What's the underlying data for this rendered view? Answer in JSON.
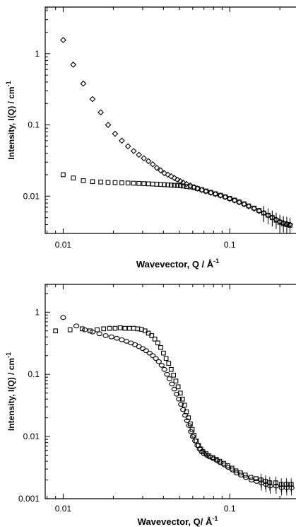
{
  "chart_data": [
    {
      "type": "scatter",
      "xscale": "log",
      "yscale": "log",
      "xlim": [
        0.0078,
        0.25
      ],
      "ylim": [
        0.003,
        4.5
      ],
      "xticks": [
        {
          "v": 0.01,
          "label": "0.01"
        },
        {
          "v": 0.1,
          "label": "0.1"
        }
      ],
      "yticks": [
        {
          "v": 0.01,
          "label": "0.01"
        },
        {
          "v": 0.1,
          "label": "0.1"
        },
        {
          "v": 1,
          "label": "1"
        }
      ],
      "xlabel": "Wavevector, Q  / Å",
      "xlabel_sup": "-1",
      "ylabel": "Intensity, I(Q) / cm",
      "ylabel_sup": "-1",
      "series": [
        {
          "marker": "diamond",
          "x": [
            0.01,
            0.0115,
            0.0132,
            0.015,
            0.0168,
            0.0186,
            0.0205,
            0.0225,
            0.0245,
            0.0265,
            0.0285,
            0.0305,
            0.0325,
            0.0345,
            0.0365,
            0.0385,
            0.0405,
            0.0425,
            0.0445,
            0.0465,
            0.0485,
            0.0505,
            0.0525,
            0.055,
            0.058,
            0.061,
            0.064,
            0.068,
            0.072,
            0.077,
            0.082,
            0.088,
            0.094,
            0.1,
            0.107,
            0.114,
            0.122,
            0.13,
            0.14,
            0.15,
            0.16,
            0.17,
            0.18,
            0.19,
            0.2,
            0.21,
            0.22,
            0.23
          ],
          "y": [
            1.55,
            0.7,
            0.38,
            0.23,
            0.15,
            0.1,
            0.075,
            0.06,
            0.05,
            0.043,
            0.038,
            0.034,
            0.031,
            0.028,
            0.025,
            0.023,
            0.021,
            0.02,
            0.019,
            0.018,
            0.017,
            0.0162,
            0.0155,
            0.0148,
            0.0141,
            0.0134,
            0.0128,
            0.0122,
            0.0117,
            0.0112,
            0.0107,
            0.0102,
            0.0097,
            0.0092,
            0.0087,
            0.0082,
            0.0077,
            0.0072,
            0.0067,
            0.0062,
            0.0058,
            0.0054,
            0.005,
            0.0047,
            0.0044,
            0.0042,
            0.0041,
            0.004
          ]
        },
        {
          "marker": "square",
          "x": [
            0.01,
            0.0115,
            0.0132,
            0.015,
            0.0168,
            0.0186,
            0.0205,
            0.0225,
            0.0245,
            0.0265,
            0.0285,
            0.0305,
            0.0325,
            0.0345,
            0.0365,
            0.0385,
            0.0405,
            0.0425,
            0.0445,
            0.0465,
            0.0485,
            0.0505,
            0.0525,
            0.055,
            0.058,
            0.061,
            0.064,
            0.068,
            0.072,
            0.077,
            0.082,
            0.088,
            0.094,
            0.1,
            0.107,
            0.114,
            0.122,
            0.13,
            0.14,
            0.15,
            0.16,
            0.17,
            0.18,
            0.19,
            0.2,
            0.21,
            0.22,
            0.23
          ],
          "y": [
            0.02,
            0.018,
            0.0165,
            0.016,
            0.0158,
            0.0156,
            0.0155,
            0.0154,
            0.0153,
            0.0152,
            0.0151,
            0.015,
            0.0149,
            0.0148,
            0.0147,
            0.0146,
            0.0145,
            0.0144,
            0.0143,
            0.0142,
            0.0141,
            0.014,
            0.0139,
            0.0137,
            0.0135,
            0.0132,
            0.0128,
            0.0123,
            0.0118,
            0.0113,
            0.0108,
            0.0103,
            0.0098,
            0.0093,
            0.0088,
            0.0083,
            0.0078,
            0.0073,
            0.0068,
            0.0063,
            0.0058,
            0.0054,
            0.005,
            0.0046,
            0.0043,
            0.0041,
            0.004,
            0.0039
          ]
        }
      ]
    },
    {
      "type": "scatter",
      "xscale": "log",
      "yscale": "log",
      "xlim": [
        0.0078,
        0.25
      ],
      "ylim": [
        0.001,
        2.8
      ],
      "xticks": [
        {
          "v": 0.01,
          "label": "0.01"
        },
        {
          "v": 0.1,
          "label": "0.1"
        }
      ],
      "yticks": [
        {
          "v": 0.001,
          "label": "0.001"
        },
        {
          "v": 0.01,
          "label": "0.01"
        },
        {
          "v": 0.1,
          "label": "0.1"
        },
        {
          "v": 1,
          "label": "1"
        }
      ],
      "xlabel": "Wavevector, Q/ Å",
      "xlabel_sup": "-1",
      "ylabel": "Intensity, I(Q) / cm",
      "ylabel_sup": "-1",
      "series": [
        {
          "marker": "circle",
          "x": [
            0.01,
            0.012,
            0.0135,
            0.015,
            0.0165,
            0.018,
            0.0195,
            0.021,
            0.0225,
            0.024,
            0.0255,
            0.027,
            0.0285,
            0.03,
            0.0315,
            0.033,
            0.0345,
            0.036,
            0.0375,
            0.039,
            0.0405,
            0.042,
            0.0435,
            0.045,
            0.0465,
            0.048,
            0.0495,
            0.051,
            0.0525,
            0.054,
            0.0555,
            0.057,
            0.0585,
            0.06,
            0.062,
            0.064,
            0.066,
            0.068,
            0.07,
            0.073,
            0.076,
            0.08,
            0.084,
            0.088,
            0.093,
            0.098,
            0.104,
            0.11,
            0.117,
            0.125,
            0.135,
            0.145,
            0.155,
            0.165,
            0.175,
            0.19,
            0.205,
            0.22,
            0.235
          ],
          "y": [
            0.82,
            0.6,
            0.52,
            0.48,
            0.45,
            0.42,
            0.4,
            0.38,
            0.36,
            0.34,
            0.32,
            0.3,
            0.28,
            0.26,
            0.24,
            0.22,
            0.2,
            0.18,
            0.16,
            0.14,
            0.12,
            0.1,
            0.085,
            0.07,
            0.058,
            0.048,
            0.04,
            0.033,
            0.027,
            0.022,
            0.018,
            0.015,
            0.012,
            0.01,
            0.0085,
            0.0072,
            0.0063,
            0.0057,
            0.0053,
            0.005,
            0.0047,
            0.0044,
            0.0041,
            0.0038,
            0.0035,
            0.0032,
            0.0029,
            0.0026,
            0.0024,
            0.0022,
            0.002,
            0.0019,
            0.0018,
            0.0017,
            0.0016,
            0.0016,
            0.0015,
            0.0015,
            0.0015
          ]
        },
        {
          "marker": "square",
          "x": [
            0.009,
            0.011,
            0.013,
            0.0145,
            0.016,
            0.0175,
            0.019,
            0.0205,
            0.022,
            0.0235,
            0.025,
            0.0265,
            0.028,
            0.0295,
            0.031,
            0.0325,
            0.034,
            0.0355,
            0.037,
            0.0385,
            0.04,
            0.0415,
            0.043,
            0.0445,
            0.046,
            0.0475,
            0.049,
            0.0505,
            0.052,
            0.0535,
            0.055,
            0.0565,
            0.058,
            0.0595,
            0.061,
            0.063,
            0.065,
            0.067,
            0.069,
            0.072,
            0.075,
            0.079,
            0.083,
            0.087,
            0.092,
            0.097,
            0.103,
            0.109,
            0.116,
            0.124,
            0.134,
            0.144,
            0.154,
            0.164,
            0.174,
            0.189,
            0.204,
            0.219,
            0.234
          ],
          "y": [
            0.5,
            0.52,
            0.54,
            0.5,
            0.52,
            0.54,
            0.55,
            0.55,
            0.56,
            0.55,
            0.55,
            0.55,
            0.54,
            0.53,
            0.5,
            0.46,
            0.42,
            0.37,
            0.32,
            0.27,
            0.22,
            0.18,
            0.15,
            0.12,
            0.097,
            0.078,
            0.063,
            0.05,
            0.04,
            0.032,
            0.025,
            0.02,
            0.016,
            0.013,
            0.0105,
            0.0085,
            0.0072,
            0.0063,
            0.0057,
            0.0053,
            0.0049,
            0.0046,
            0.0043,
            0.004,
            0.0037,
            0.0034,
            0.0031,
            0.0028,
            0.0026,
            0.0024,
            0.0022,
            0.0021,
            0.002,
            0.0019,
            0.0018,
            0.0018,
            0.0017,
            0.0017,
            0.0017
          ]
        }
      ]
    }
  ]
}
